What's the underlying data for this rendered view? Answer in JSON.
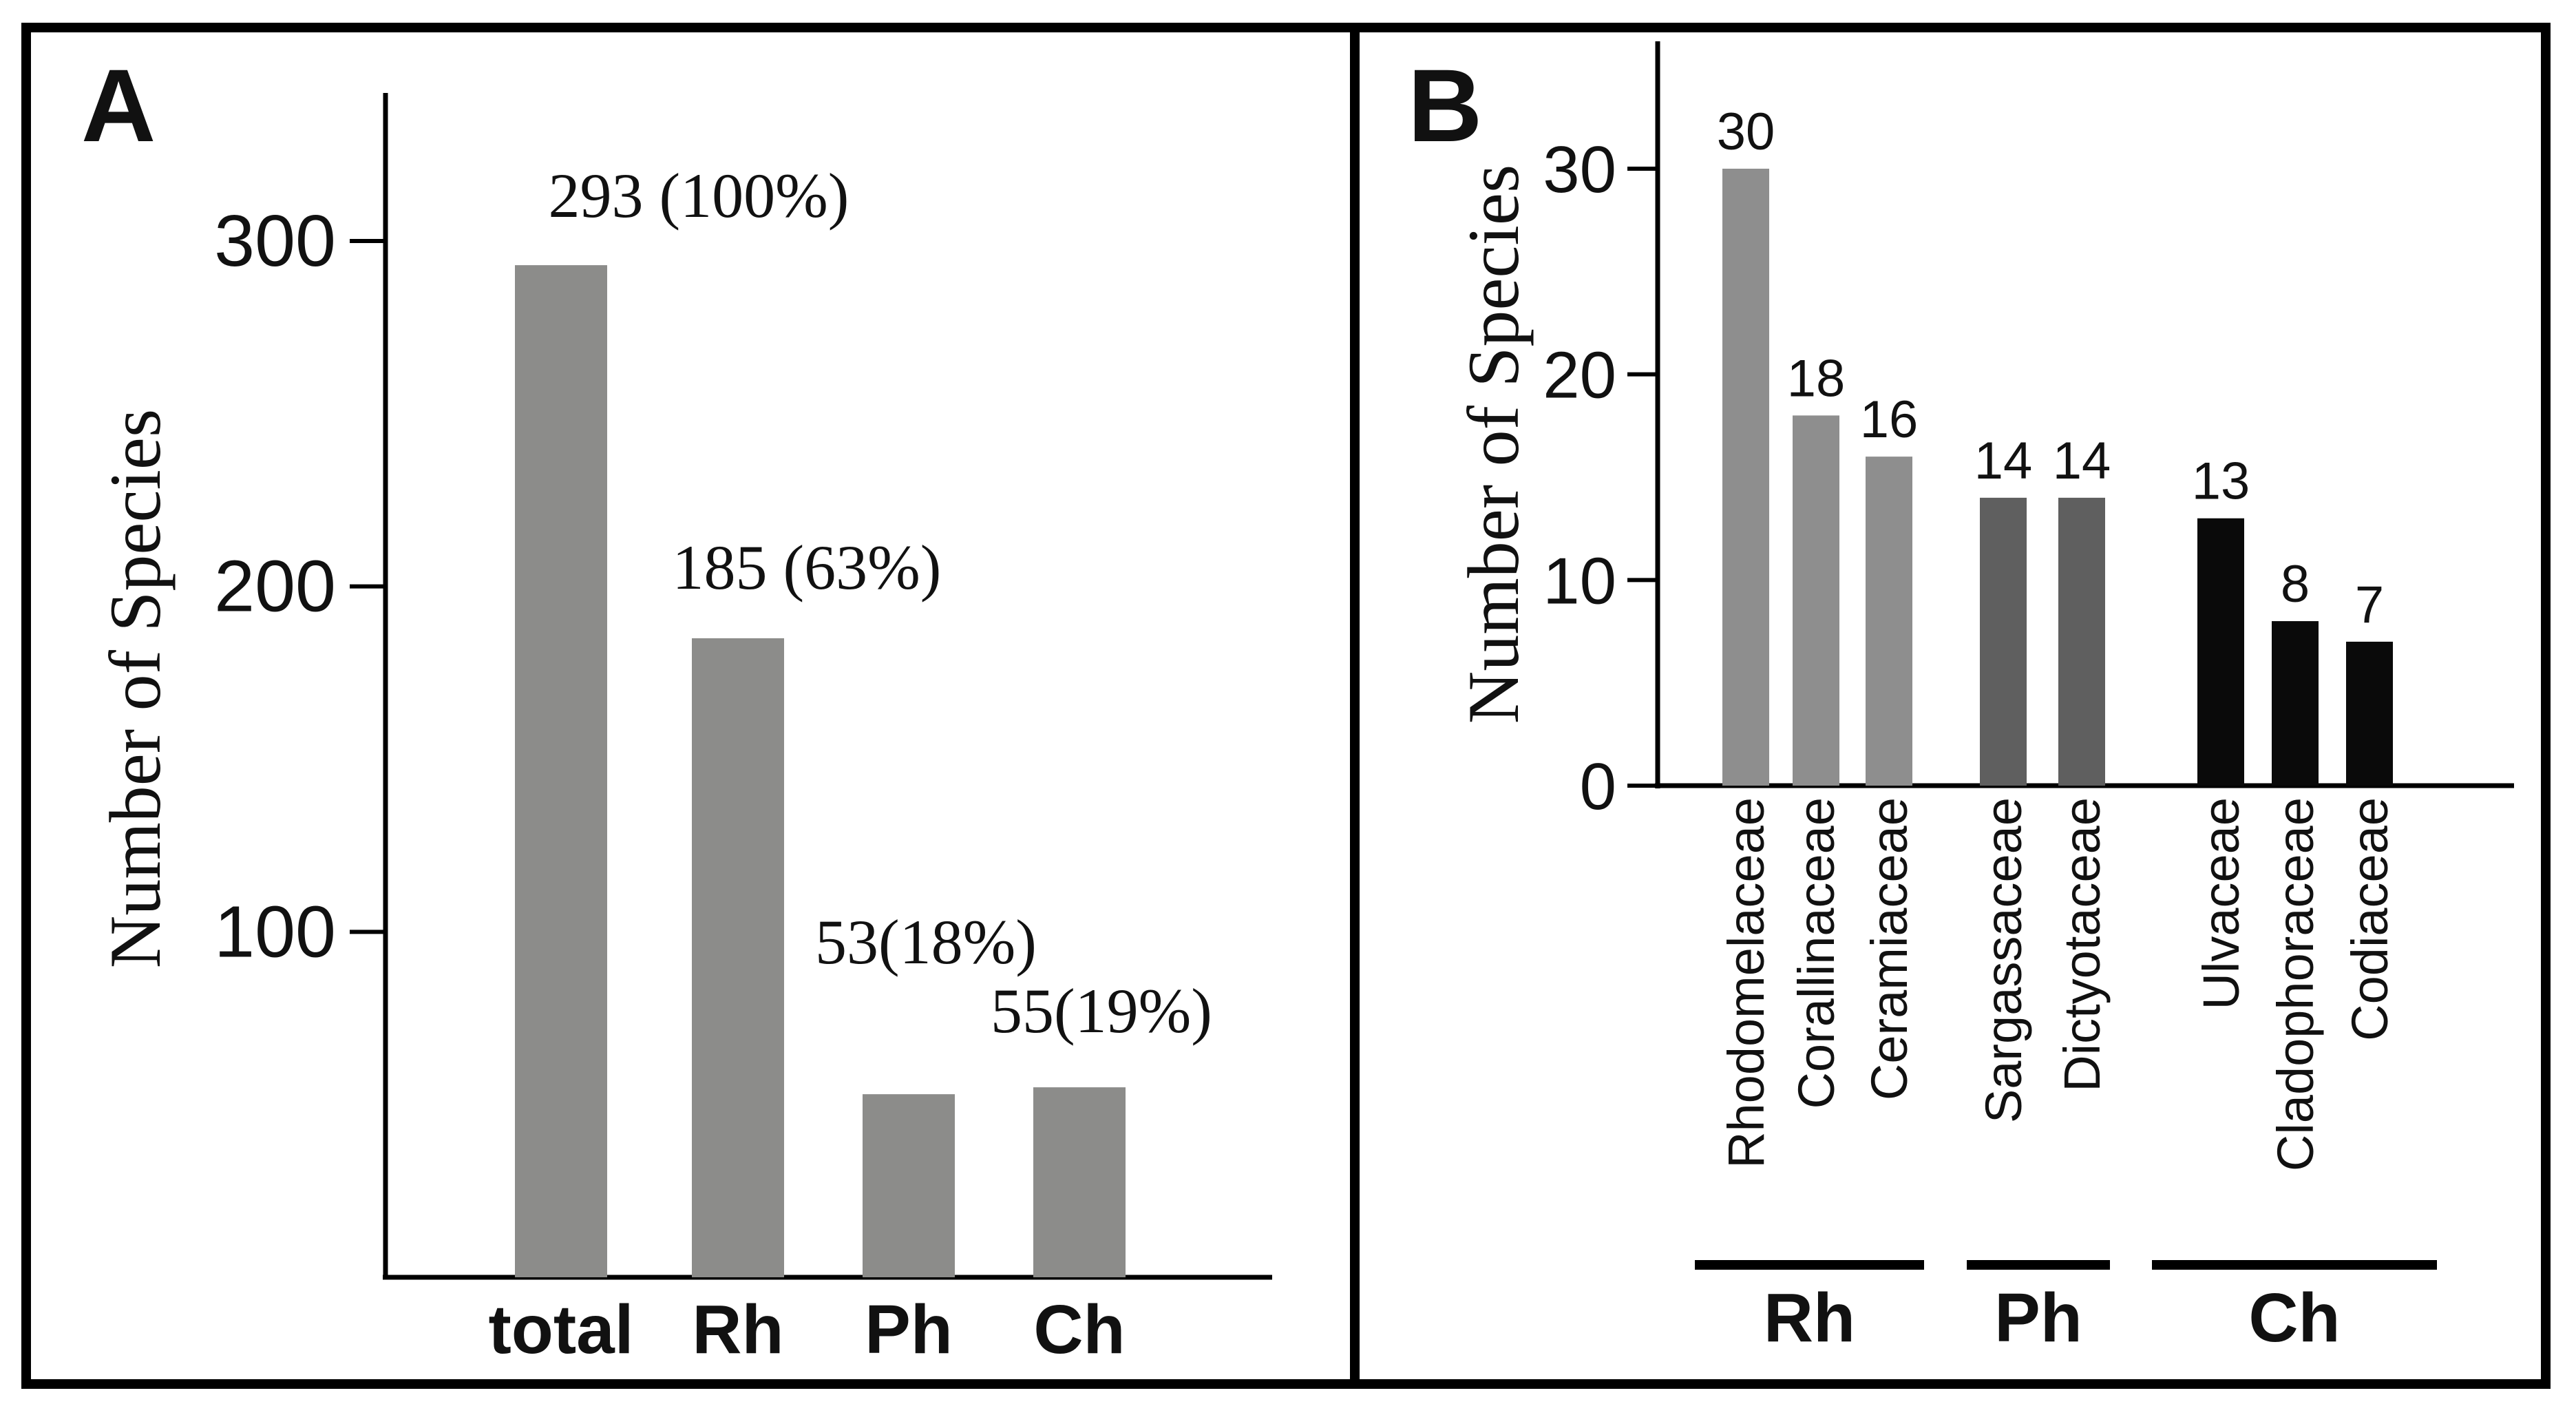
{
  "chart_data": [
    {
      "panel": "A",
      "type": "bar",
      "title": "",
      "xlabel": "",
      "ylabel": "Number of Species",
      "ylim": [
        0,
        340
      ],
      "yticks": [
        100,
        200,
        300
      ],
      "categories": [
        "total",
        "Rh",
        "Ph",
        "Ch"
      ],
      "values": [
        293,
        185,
        53,
        55
      ],
      "data_labels": [
        "293 (100%)",
        "185 (63%)",
        "53(18%)",
        "55(19%)"
      ],
      "bar_color": "#8c8c8a",
      "grid": false
    },
    {
      "panel": "B",
      "type": "bar",
      "title": "",
      "xlabel": "",
      "ylabel": "Number of Species",
      "ylim": [
        0,
        36
      ],
      "yticks": [
        0,
        10,
        20,
        30
      ],
      "categories": [
        "Rhodomelaceae",
        "Corallinaceae",
        "Ceramiaceae",
        "Sargassaceae",
        "Dictyotaceae",
        "Ulvaceae",
        "Cladophoraceae",
        "Codiaceae"
      ],
      "values": [
        30,
        18,
        16,
        14,
        14,
        13,
        8,
        7
      ],
      "data_labels": [
        "30",
        "18",
        "16",
        "14",
        "14",
        "13",
        "8",
        "7"
      ],
      "bar_groups": [
        "Rh",
        "Rh",
        "Rh",
        "Ph",
        "Ph",
        "Ch",
        "Ch",
        "Ch"
      ],
      "groups": [
        {
          "name": "Rh",
          "color": "#8e8e8e"
        },
        {
          "name": "Ph",
          "color": "#5f5f5f"
        },
        {
          "name": "Ch",
          "color": "#0a0a0a"
        }
      ],
      "grid": false
    }
  ]
}
